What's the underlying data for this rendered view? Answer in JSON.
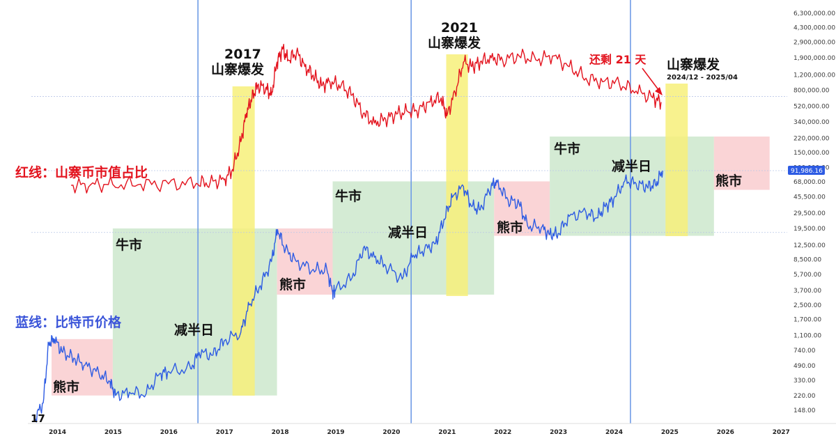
{
  "chart_data": {
    "type": "line",
    "y_scale": "log",
    "x_ticks": [
      "2014",
      "2015",
      "2016",
      "2017",
      "2018",
      "2019",
      "2020",
      "2021",
      "2022",
      "2023",
      "2024",
      "2025",
      "2026",
      "2027"
    ],
    "y_ticks": [
      "6,300,000.00",
      "4,300,000.00",
      "2,900,000.00",
      "1,900,000.00",
      "1,200,000.00",
      "800,000.00",
      "520,000.00",
      "340,000.00",
      "220,000.00",
      "150,000.00",
      "100,000.00",
      "68,000.00",
      "45,500.00",
      "29,500.00",
      "19,500.00",
      "12,500.00",
      "8,500.00",
      "5,700.00",
      "3,700.00",
      "2,500.00",
      "1,700.00",
      "1,100.00",
      "740.00",
      "490.00",
      "330.00",
      "220.00",
      "148.00"
    ],
    "series": [
      {
        "name": "红线：山寨币市值占比",
        "color": "#e3131e",
        "points": [
          [
            2014.25,
            62000
          ],
          [
            2014.6,
            63000
          ],
          [
            2015.0,
            63500
          ],
          [
            2015.5,
            64000
          ],
          [
            2016.0,
            64500
          ],
          [
            2016.5,
            65500
          ],
          [
            2016.75,
            67000
          ],
          [
            2017.0,
            72000
          ],
          [
            2017.15,
            95000
          ],
          [
            2017.3,
            200000
          ],
          [
            2017.4,
            430000
          ],
          [
            2017.5,
            650000
          ],
          [
            2017.6,
            900000
          ],
          [
            2017.75,
            850000
          ],
          [
            2017.85,
            700000
          ],
          [
            2017.95,
            1700000
          ],
          [
            2018.05,
            2400000
          ],
          [
            2018.15,
            1800000
          ],
          [
            2018.3,
            2200000
          ],
          [
            2018.45,
            1500000
          ],
          [
            2018.6,
            1200000
          ],
          [
            2018.75,
            900000
          ],
          [
            2018.9,
            1000000
          ],
          [
            2019.1,
            900000
          ],
          [
            2019.3,
            700000
          ],
          [
            2019.5,
            430000
          ],
          [
            2019.7,
            330000
          ],
          [
            2019.9,
            370000
          ],
          [
            2020.1,
            420000
          ],
          [
            2020.3,
            450000
          ],
          [
            2020.5,
            470000
          ],
          [
            2020.7,
            580000
          ],
          [
            2020.9,
            650000
          ],
          [
            2021.0,
            400000
          ],
          [
            2021.15,
            750000
          ],
          [
            2021.3,
            1700000
          ],
          [
            2021.45,
            1500000
          ],
          [
            2021.6,
            1700000
          ],
          [
            2021.8,
            1900000
          ],
          [
            2022.0,
            1800000
          ],
          [
            2022.3,
            2000000
          ],
          [
            2022.6,
            1800000
          ],
          [
            2022.9,
            2000000
          ],
          [
            2023.2,
            1500000
          ],
          [
            2023.5,
            1100000
          ],
          [
            2023.8,
            1000000
          ],
          [
            2024.1,
            950000
          ],
          [
            2024.4,
            780000
          ],
          [
            2024.7,
            650000
          ],
          [
            2024.85,
            580000
          ]
        ]
      },
      {
        "name": "蓝线：比特币价格",
        "color": "#2d5be3",
        "last_value": "91,986.16",
        "points": [
          [
            2013.6,
            120
          ],
          [
            2013.75,
            180
          ],
          [
            2013.85,
            900
          ],
          [
            2013.95,
            1000
          ],
          [
            2014.1,
            700
          ],
          [
            2014.3,
            600
          ],
          [
            2014.5,
            500
          ],
          [
            2014.75,
            400
          ],
          [
            2014.95,
            320
          ],
          [
            2015.05,
            220
          ],
          [
            2015.3,
            240
          ],
          [
            2015.6,
            230
          ],
          [
            2015.85,
            400
          ],
          [
            2016.0,
            420
          ],
          [
            2016.4,
            450
          ],
          [
            2016.55,
            700
          ],
          [
            2016.8,
            650
          ],
          [
            2017.0,
            950
          ],
          [
            2017.3,
            1200
          ],
          [
            2017.45,
            2500
          ],
          [
            2017.65,
            4200
          ],
          [
            2017.85,
            8000
          ],
          [
            2017.96,
            19000
          ],
          [
            2018.1,
            11000
          ],
          [
            2018.3,
            8000
          ],
          [
            2018.6,
            6500
          ],
          [
            2018.85,
            6300
          ],
          [
            2018.95,
            3500
          ],
          [
            2019.0,
            3700
          ],
          [
            2019.3,
            5200
          ],
          [
            2019.5,
            11500
          ],
          [
            2019.7,
            9000
          ],
          [
            2019.9,
            7200
          ],
          [
            2020.2,
            5000
          ],
          [
            2020.4,
            9500
          ],
          [
            2020.6,
            11000
          ],
          [
            2020.8,
            13000
          ],
          [
            2020.95,
            25000
          ],
          [
            2021.1,
            45000
          ],
          [
            2021.3,
            60000
          ],
          [
            2021.45,
            35000
          ],
          [
            2021.6,
            32000
          ],
          [
            2021.8,
            62000
          ],
          [
            2021.9,
            67000
          ],
          [
            2022.1,
            42000
          ],
          [
            2022.3,
            38000
          ],
          [
            2022.45,
            21000
          ],
          [
            2022.7,
            20000
          ],
          [
            2022.85,
            16500
          ],
          [
            2023.0,
            17000
          ],
          [
            2023.2,
            27000
          ],
          [
            2023.5,
            30000
          ],
          [
            2023.7,
            26000
          ],
          [
            2023.85,
            35000
          ],
          [
            2024.0,
            43000
          ],
          [
            2024.2,
            70000
          ],
          [
            2024.4,
            65000
          ],
          [
            2024.6,
            60000
          ],
          [
            2024.75,
            63000
          ],
          [
            2024.88,
            92000
          ]
        ]
      }
    ],
    "halving_lines": [
      2016.53,
      2020.36,
      2024.3
    ],
    "altcoin_season_bands": [
      [
        2017.15,
        2017.55
      ],
      [
        2020.99,
        2021.38
      ],
      [
        2024.93,
        2025.33
      ]
    ],
    "zones": [
      {
        "label": "熊市",
        "type": "bear",
        "x": [
          2013.9,
          2015.0
        ],
        "y": [
          220,
          1000
        ]
      },
      {
        "label": "牛市",
        "type": "bull",
        "x": [
          2015.0,
          2017.95
        ],
        "y": [
          220,
          19500
        ]
      },
      {
        "label": "熊市",
        "type": "bear",
        "x": [
          2017.95,
          2018.95
        ],
        "y": [
          3300,
          19500
        ]
      },
      {
        "label": "牛市",
        "type": "bull",
        "x": [
          2018.95,
          2021.85
        ],
        "y": [
          3300,
          69000
        ]
      },
      {
        "label": "熊市",
        "type": "bear",
        "x": [
          2021.85,
          2022.85
        ],
        "y": [
          16000,
          69000
        ]
      },
      {
        "label": "牛市",
        "type": "bull",
        "x": [
          2022.85,
          2025.8
        ],
        "y": [
          16000,
          230000
        ]
      },
      {
        "label": "熊市",
        "type": "bear",
        "x": [
          2025.8,
          2026.8
        ],
        "y": [
          55000,
          230000
        ]
      }
    ],
    "annotations": {
      "halving": "减半日",
      "season_2017_year": "2017",
      "season_2017_text": "山寨爆发",
      "season_2021_year": "2021",
      "season_2021_text": "山寨爆发",
      "season_2025_text": "山寨爆发",
      "season_2025_range": "2024/12 - 2025/04",
      "countdown": "还剩 21 天",
      "red_legend": "红线：山寨币市值占比",
      "blue_legend": "蓝线：比特币价格",
      "logo": "17"
    },
    "colors": {
      "bull": "#cfe9cf",
      "bear": "#f9cfd2",
      "season": "#f7f07a",
      "halving_line": "#6f9be6",
      "price_tag": "#2d5be3"
    }
  }
}
